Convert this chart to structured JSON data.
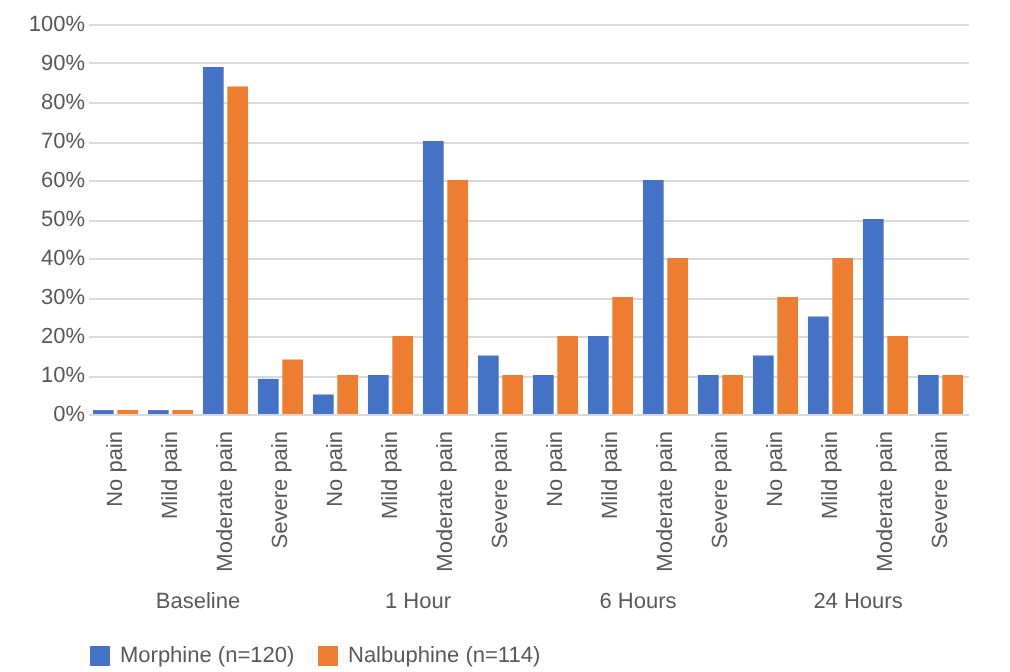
{
  "chart_data": {
    "type": "bar",
    "categories": [
      "No pain",
      "Mild pain",
      "Moderate pain",
      "Severe pain",
      "No pain",
      "Mild pain",
      "Moderate pain",
      "Severe pain",
      "No pain",
      "Mild pain",
      "Moderate pain",
      "Severe pain",
      "No pain",
      "Mild pain",
      "Moderate pain",
      "Severe pain"
    ],
    "series": [
      {
        "name": "Morphine (n=120)",
        "color": "#4472c4",
        "values": [
          1,
          1,
          89,
          9,
          5,
          10,
          70,
          15,
          10,
          20,
          60,
          10,
          15,
          25,
          50,
          10
        ]
      },
      {
        "name": "Nalbuphine (n=114)",
        "color": "#ed7d31",
        "values": [
          1,
          1,
          84,
          14,
          10,
          20,
          60,
          10,
          20,
          30,
          40,
          10,
          30,
          40,
          20,
          10
        ]
      }
    ],
    "annotations": [
      "Baseline",
      "1 Hour",
      "6 Hours",
      "24 Hours"
    ],
    "ylim": [
      0,
      100
    ],
    "yticks": [
      {
        "value": 0,
        "label": "0%"
      },
      {
        "value": 10,
        "label": "10%"
      },
      {
        "value": 20,
        "label": "20%"
      },
      {
        "value": 30,
        "label": "30%"
      },
      {
        "value": 40,
        "label": "40%"
      },
      {
        "value": 50,
        "label": "50%"
      },
      {
        "value": 60,
        "label": "60%"
      },
      {
        "value": 70,
        "label": "70%"
      },
      {
        "value": 80,
        "label": "80%"
      },
      {
        "value": 90,
        "label": "90%"
      },
      {
        "value": 100,
        "label": "100%"
      }
    ],
    "grid": "y",
    "legend": "bottom"
  }
}
